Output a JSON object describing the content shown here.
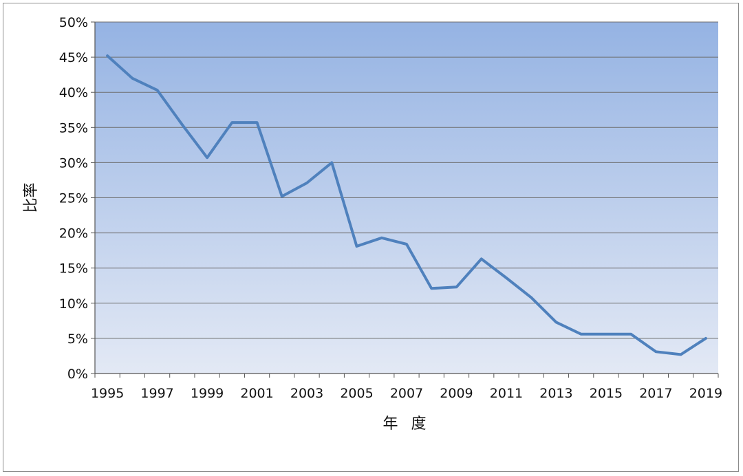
{
  "chart_data": {
    "type": "line",
    "xlabel": "年 度",
    "ylabel": "比率",
    "xlim": [
      1995,
      2019
    ],
    "ylim": [
      0,
      50
    ],
    "y_tick_step": 5,
    "y_tick_suffix": "%",
    "x_tick_labels": [
      "1995",
      "1997",
      "1999",
      "2001",
      "2003",
      "2005",
      "2007",
      "2009",
      "2011",
      "2013",
      "2015",
      "2017",
      "2019"
    ],
    "grid": true,
    "legend": "none",
    "series": [
      {
        "x": [
          1995,
          1996,
          1997,
          1998,
          1999,
          2000,
          2001,
          2002,
          2003,
          2004,
          2005,
          2006,
          2007,
          2008,
          2009,
          2010,
          2011,
          2012,
          2013,
          2014,
          2015,
          2016,
          2017,
          2018,
          2019
        ],
        "values": [
          45.2,
          42.0,
          40.3,
          35.4,
          30.7,
          35.7,
          35.7,
          25.2,
          27.1,
          30.0,
          18.1,
          19.3,
          18.4,
          12.1,
          12.3,
          16.3,
          13.6,
          10.8,
          7.3,
          5.6,
          5.6,
          5.6,
          3.1,
          2.7,
          5.0
        ]
      }
    ],
    "colors": {
      "line": "#4f81bd",
      "plot_top": "#95b3e3",
      "plot_bottom": "#e3e9f5",
      "gridline": "#6e6e6e"
    }
  }
}
